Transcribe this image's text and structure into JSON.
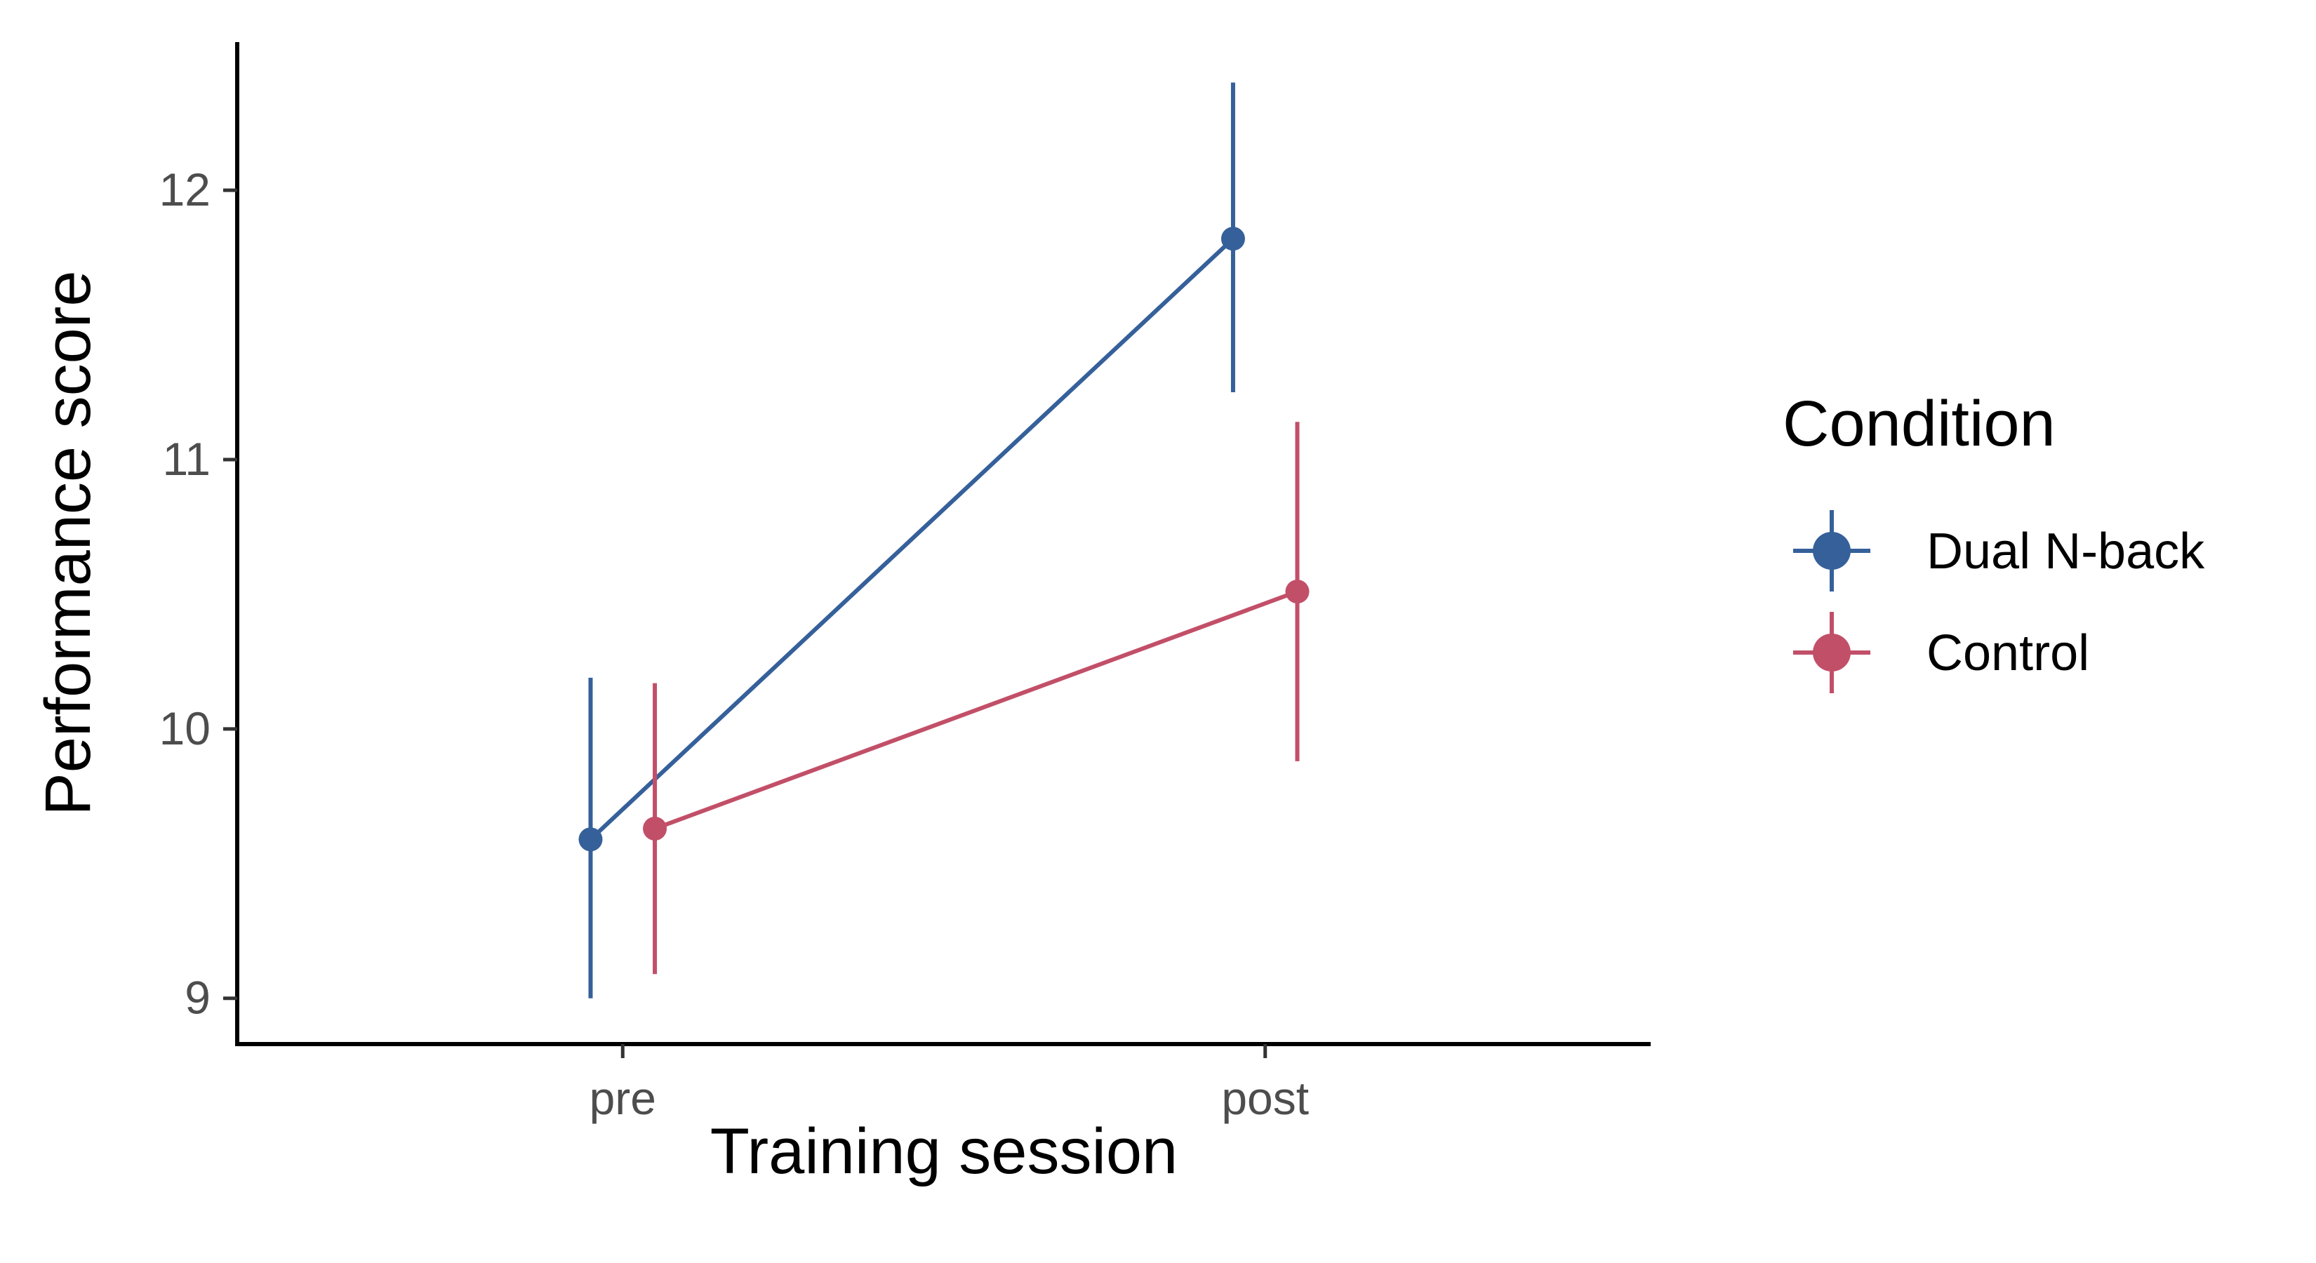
{
  "chart_data": {
    "type": "line",
    "title": "",
    "xlabel": "Training session",
    "ylabel": "Performance score",
    "categories": [
      "pre",
      "post"
    ],
    "ylim": [
      8.83,
      12.55
    ],
    "yticks": [
      9,
      10,
      11,
      12
    ],
    "grid": false,
    "legend": {
      "title": "Condition",
      "placement": "right"
    },
    "series": [
      {
        "name": "Dual N-back",
        "color": "#35609A",
        "values": [
          9.59,
          11.82
        ],
        "lower": [
          9.0,
          11.25
        ],
        "upper": [
          10.19,
          12.4
        ]
      },
      {
        "name": "Control",
        "color": "#C24F68",
        "values": [
          9.63,
          10.51
        ],
        "lower": [
          9.09,
          9.88
        ],
        "upper": [
          10.17,
          11.14
        ]
      }
    ]
  }
}
